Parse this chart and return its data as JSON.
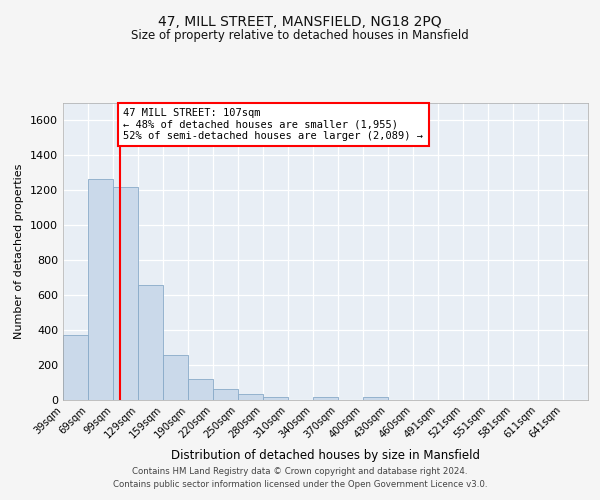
{
  "title": "47, MILL STREET, MANSFIELD, NG18 2PQ",
  "subtitle": "Size of property relative to detached houses in Mansfield",
  "xlabel": "Distribution of detached houses by size in Mansfield",
  "ylabel": "Number of detached properties",
  "bin_labels": [
    "39sqm",
    "69sqm",
    "99sqm",
    "129sqm",
    "159sqm",
    "190sqm",
    "220sqm",
    "250sqm",
    "280sqm",
    "310sqm",
    "340sqm",
    "370sqm",
    "400sqm",
    "430sqm",
    "460sqm",
    "491sqm",
    "521sqm",
    "551sqm",
    "581sqm",
    "611sqm",
    "641sqm"
  ],
  "bar_values": [
    370,
    1265,
    1215,
    655,
    260,
    120,
    65,
    35,
    20,
    0,
    15,
    0,
    20,
    0,
    0,
    0,
    0,
    0,
    0,
    0,
    0
  ],
  "bar_color": "#cad9ea",
  "bar_edge_color": "#88aac8",
  "ylim": [
    0,
    1700
  ],
  "yticks": [
    0,
    200,
    400,
    600,
    800,
    1000,
    1200,
    1400,
    1600
  ],
  "property_sqm": 107,
  "annotation_title": "47 MILL STREET: 107sqm",
  "annotation_line1": "← 48% of detached houses are smaller (1,955)",
  "annotation_line2": "52% of semi-detached houses are larger (2,089) →",
  "footer_line1": "Contains HM Land Registry data © Crown copyright and database right 2024.",
  "footer_line2": "Contains public sector information licensed under the Open Government Licence v3.0.",
  "bg_color": "#f5f5f5",
  "plot_bg_color": "#e8eef5",
  "grid_color": "#ffffff"
}
